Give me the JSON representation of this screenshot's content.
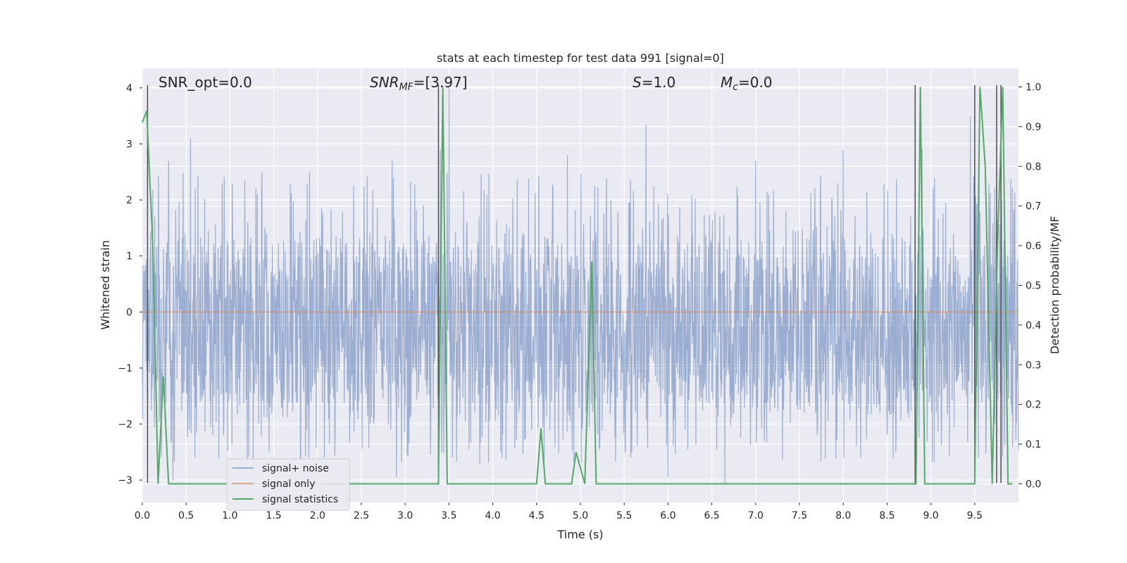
{
  "chart_data": {
    "type": "line",
    "title": "stats at each timestep for test data 991 [signal=0]",
    "xlabel": "Time (s)",
    "ylabel": "Whitened strain",
    "y2label": "Detection probability/MF",
    "xlim": [
      0.0,
      10.0
    ],
    "ylim": [
      -3.4,
      4.35
    ],
    "y2lim": [
      -0.047,
      1.047
    ],
    "xticks": [
      0.0,
      0.5,
      1.0,
      1.5,
      2.0,
      2.5,
      3.0,
      3.5,
      4.0,
      4.5,
      5.0,
      5.5,
      6.0,
      6.5,
      7.0,
      7.5,
      8.0,
      8.5,
      9.0,
      9.5
    ],
    "xtick_labels": [
      "0.0",
      "0.5",
      "1.0",
      "1.5",
      "2.0",
      "2.5",
      "3.0",
      "3.5",
      "4.0",
      "4.5",
      "5.0",
      "5.5",
      "6.0",
      "6.5",
      "7.0",
      "7.5",
      "8.0",
      "8.5",
      "9.0",
      "9.5"
    ],
    "yticks": [
      -3,
      -2,
      -1,
      0,
      1,
      2,
      3,
      4
    ],
    "ytick_labels": [
      "−3",
      "−2",
      "−1",
      "0",
      "1",
      "2",
      "3",
      "4"
    ],
    "y2ticks": [
      0.0,
      0.1,
      0.2,
      0.3,
      0.4,
      0.5,
      0.6,
      0.7,
      0.8,
      0.9,
      1.0
    ],
    "y2tick_labels": [
      "0.0",
      "0.1",
      "0.2",
      "0.3",
      "0.4",
      "0.5",
      "0.6",
      "0.7",
      "0.8",
      "0.9",
      "1.0"
    ],
    "grid": true,
    "legend_position": "lower-left",
    "annotations": {
      "snr_opt": "SNR_opt=0.0",
      "snr_mf_label": "SNR",
      "snr_mf_sub": "MF",
      "snr_mf_value": "=[3.97]",
      "s_symbol": "S",
      "s_value": "=1.0",
      "mc_symbol": "M",
      "mc_sub": "c",
      "mc_value": "=0.0"
    },
    "series": [
      {
        "name": "signal+ noise",
        "color": "#4c72b0",
        "description_values": {
          "duration": 10.0,
          "typical_band": [
            -1.7,
            1.2
          ],
          "peak_spikes": [
            {
              "x": 0.55,
              "y": 3.1
            },
            {
              "x": 0.3,
              "y": 2.7
            },
            {
              "x": 3.5,
              "y": 4.0
            },
            {
              "x": 5.75,
              "y": 3.35
            },
            {
              "x": 9.45,
              "y": 3.5
            },
            {
              "x": 9.55,
              "y": 3.3
            },
            {
              "x": 3.4,
              "y": 2.9
            },
            {
              "x": 2.85,
              "y": 2.7
            },
            {
              "x": 4.85,
              "y": 2.8
            },
            {
              "x": 7.0,
              "y": 2.7
            },
            {
              "x": 8.0,
              "y": 2.9
            },
            {
              "x": 8.9,
              "y": 2.9
            }
          ],
          "trough_spikes": [
            {
              "x": 0.35,
              "y": -3.0
            },
            {
              "x": 1.9,
              "y": -2.6
            },
            {
              "x": 2.9,
              "y": -2.95
            },
            {
              "x": 6.0,
              "y": -2.95
            },
            {
              "x": 6.65,
              "y": -3.05
            },
            {
              "x": 3.85,
              "y": -2.7
            },
            {
              "x": 5.65,
              "y": -2.4
            },
            {
              "x": 8.2,
              "y": -2.6
            },
            {
              "x": 8.6,
              "y": -2.5
            }
          ]
        }
      },
      {
        "name": "signal only",
        "color": "#dd8452",
        "x": [
          0.0,
          10.0
        ],
        "y": [
          0.0,
          0.0
        ]
      },
      {
        "name": "signal statistics",
        "color": "#55a868",
        "axis": "right",
        "x": [
          0.0,
          0.05,
          0.12,
          0.18,
          0.24,
          0.3,
          3.38,
          3.43,
          3.48,
          4.5,
          4.55,
          4.6,
          4.9,
          4.95,
          5.05,
          5.13,
          5.18,
          8.83,
          8.88,
          8.93,
          9.5,
          9.56,
          9.62,
          9.7,
          9.76,
          9.82,
          9.88,
          9.93
        ],
        "y": [
          0.91,
          0.94,
          0.6,
          0.0,
          0.27,
          0.0,
          0.0,
          1.0,
          0.0,
          0.0,
          0.14,
          0.0,
          0.0,
          0.08,
          0.0,
          0.56,
          0.0,
          0.0,
          1.0,
          0.0,
          0.0,
          1.0,
          0.8,
          0.0,
          0.6,
          1.0,
          0.0,
          0.0
        ]
      },
      {
        "name": "",
        "color": "#4d4d4d",
        "kind": "vertical-markers",
        "x": [
          0.06,
          3.38,
          8.82,
          9.5,
          9.75,
          9.8
        ]
      }
    ]
  }
}
